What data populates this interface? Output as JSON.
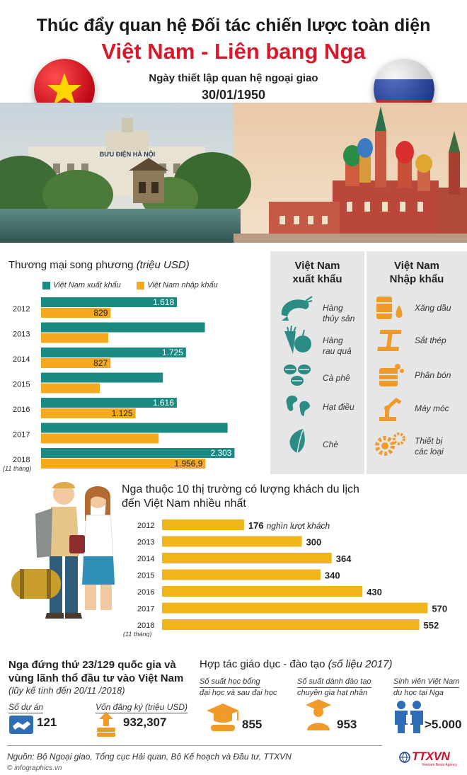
{
  "header": {
    "title_line1": "Thúc đẩy quan hệ Đối tác chiến lược toàn diện",
    "title_line2": "Việt Nam - Liên bang Nga",
    "established_label": "Ngày thiết lập quan hệ ngoại giao",
    "established_date": "30/01/1950"
  },
  "banner": {
    "post_office_sign": "BƯU ĐIỆN HÀ NỘI"
  },
  "colors": {
    "export": "#1b8a82",
    "import": "#f5a91e",
    "tourism": "#f0b51a",
    "title_red": "#d6192b",
    "icon_teal": "#2b8c86",
    "icon_orange": "#f09a2a",
    "icon_blue": "#2f6db5"
  },
  "trade": {
    "title": "Thương mại song phương",
    "unit": "(triệu USD)",
    "legend_export": "Việt Nam xuất khẩu",
    "legend_import": "Việt Nam nhập khẩu",
    "note_2018": "(11 tháng)"
  },
  "chart_data": [
    {
      "type": "bar",
      "orientation": "horizontal",
      "title": "Thương mại song phương (triệu USD)",
      "categories": [
        "2012",
        "2013",
        "2014",
        "2015",
        "2016",
        "2017",
        "2018"
      ],
      "series": [
        {
          "name": "Việt Nam xuất khẩu",
          "values": [
            1618,
            1950,
            1725,
            1450,
            1616,
            2220,
            2303
          ],
          "labels": [
            "1.618",
            "",
            "1.725",
            "",
            "1.616",
            "",
            "2.303"
          ]
        },
        {
          "name": "Việt Nam nhập khẩu",
          "values": [
            829,
            800,
            827,
            700,
            1125,
            1400,
            1956.9
          ],
          "labels": [
            "829",
            "",
            "827",
            "",
            "1.125",
            "",
            "1.956,9"
          ]
        }
      ],
      "xlim": [
        0,
        2400
      ],
      "grid": false,
      "legend_position": "top"
    },
    {
      "type": "bar",
      "orientation": "horizontal",
      "title": "Nga thuộc 10 thị trường có lượng khách du lịch đến Việt Nam nhiều nhất",
      "categories": [
        "2012",
        "2013",
        "2014",
        "2015",
        "2016",
        "2017",
        "2018"
      ],
      "values": [
        176,
        300,
        364,
        340,
        430,
        570,
        552
      ],
      "labels": [
        "176",
        "300",
        "364",
        "340",
        "430",
        "570",
        "552"
      ],
      "value_suffix_first": "nghìn lượt khách",
      "xlim": [
        0,
        580
      ],
      "grid": false
    }
  ],
  "goods": {
    "export_head": [
      "Việt Nam",
      "xuất khẩu"
    ],
    "import_head": [
      "Việt Nam",
      "Nhập khẩu"
    ],
    "exports": [
      {
        "icon": "shrimp-icon",
        "label": [
          "Hàng",
          "thủy sản"
        ]
      },
      {
        "icon": "vegetables-icon",
        "label": [
          "Hàng",
          "rau quả"
        ]
      },
      {
        "icon": "coffee-beans-icon",
        "label": [
          "Cà phê"
        ]
      },
      {
        "icon": "cashew-icon",
        "label": [
          "Hạt điều"
        ]
      },
      {
        "icon": "tea-leaf-icon",
        "label": [
          "Chè"
        ]
      }
    ],
    "imports": [
      {
        "icon": "oil-barrel-icon",
        "label": [
          "Xăng dầu"
        ]
      },
      {
        "icon": "steel-beam-icon",
        "label": [
          "Sắt thép"
        ]
      },
      {
        "icon": "fertilizer-icon",
        "label": [
          "Phân bón"
        ]
      },
      {
        "icon": "robot-arm-icon",
        "label": [
          "Máy móc"
        ]
      },
      {
        "icon": "gears-icon",
        "label": [
          "Thiết bị",
          "các loại"
        ]
      }
    ]
  },
  "tourism": {
    "title_line1": "Nga thuộc 10 thị trường có lượng khách du lịch",
    "title_line2": "đến Việt Nam nhiều nhất",
    "first_suffix": "nghìn lượt khách",
    "note_2018": "(11 tháng)"
  },
  "investment": {
    "title_line1": "Nga đứng thứ 23/129 quốc gia và",
    "title_line2": "vùng lãnh thổ đầu tư vào Việt Nam",
    "note": "(lũy kế tính đến 20/11 /2018)",
    "projects_label": "Số dự án",
    "projects_value": "121",
    "capital_label": "Vốn đăng ký (triệu USD)",
    "capital_value": "932,307"
  },
  "education": {
    "title": "Hợp tác giáo dục - đào tạo",
    "title_note": "(số liệu 2017)",
    "items": [
      {
        "label": [
          "Số suất học bổng",
          "đại học và sau đại học"
        ],
        "value": "855",
        "icon": "graduation-cap-icon"
      },
      {
        "label": [
          "Số suất dành đào tạo",
          "chuyên gia hạt nhân"
        ],
        "value": "953",
        "icon": "graduate-icon"
      },
      {
        "label": [
          "Sinh viên Việt Nam",
          "du học tại Nga"
        ],
        "value": ">5.000",
        "icon": "students-icon"
      }
    ]
  },
  "footer": {
    "source": "Nguồn: Bộ Ngoại giao, Tổng cục Hải quan, Bộ Kế hoạch và Đầu tư, TTXVN",
    "site": "© infographics.vn",
    "logo": "TTXVN",
    "logo_sub": "Vietnam News Agency"
  }
}
